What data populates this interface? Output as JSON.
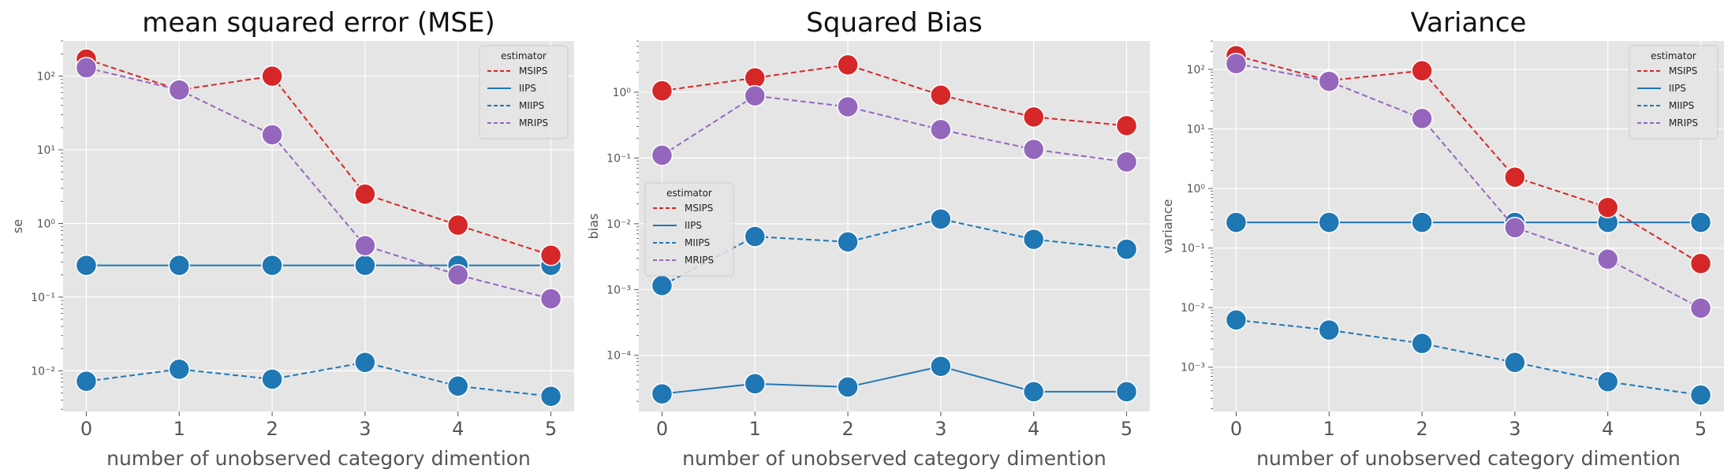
{
  "colors": {
    "MSIPS": "#d62728",
    "IIPS": "#1f77b4",
    "MIIPS": "#1f77b4",
    "MRIPS": "#9467bd",
    "axes_bg": "#e5e5e5",
    "grid": "#ffffff"
  },
  "chart_data": [
    {
      "type": "line",
      "title": "mean squared error (MSE)",
      "xlabel": "number of unobserved category dimention",
      "ylabel": "se",
      "yscale": "log",
      "ylim": [
        0.0028,
        300
      ],
      "yticks": [
        0.01,
        0.1,
        1,
        10,
        100
      ],
      "ytick_labels": [
        "10⁻²",
        "10⁻¹",
        "10⁰",
        "10¹",
        "10²"
      ],
      "x": [
        0,
        1,
        2,
        3,
        4,
        5
      ],
      "xtick_labels": [
        "0",
        "1",
        "2",
        "3",
        "4",
        "5"
      ],
      "grid": true,
      "legend": {
        "title": "estimator",
        "placement": "upper right"
      },
      "series": [
        {
          "name": "MSIPS",
          "values": [
            170,
            65,
            100,
            2.5,
            0.95,
            0.37
          ]
        },
        {
          "name": "IIPS",
          "values": [
            0.27,
            0.27,
            0.27,
            0.27,
            0.27,
            0.27
          ]
        },
        {
          "name": "MIIPS",
          "values": [
            0.0072,
            0.0105,
            0.0077,
            0.013,
            0.0062,
            0.0045
          ]
        },
        {
          "name": "MRIPS",
          "values": [
            130,
            65,
            16,
            0.5,
            0.2,
            0.095
          ]
        }
      ]
    },
    {
      "type": "line",
      "title": "Squared Bias",
      "xlabel": "number of unobserved category dimention",
      "ylabel": "bias",
      "yscale": "log",
      "ylim": [
        1.4e-05,
        6
      ],
      "yticks": [
        0.0001,
        0.001,
        0.01,
        0.1,
        1
      ],
      "ytick_labels": [
        "10⁻⁴",
        "10⁻³",
        "10⁻²",
        "10⁻¹",
        "10⁰"
      ],
      "x": [
        0,
        1,
        2,
        3,
        4,
        5
      ],
      "xtick_labels": [
        "0",
        "1",
        "2",
        "3",
        "4",
        "5"
      ],
      "grid": true,
      "legend": {
        "title": "estimator",
        "placement": "center left"
      },
      "series": [
        {
          "name": "MSIPS",
          "values": [
            1.05,
            1.65,
            2.6,
            0.9,
            0.42,
            0.31
          ]
        },
        {
          "name": "IIPS",
          "values": [
            2.6e-05,
            3.7e-05,
            3.3e-05,
            6.8e-05,
            2.8e-05,
            2.8e-05
          ]
        },
        {
          "name": "MIIPS",
          "values": [
            0.00115,
            0.0064,
            0.0053,
            0.0118,
            0.0058,
            0.0041
          ]
        },
        {
          "name": "MRIPS",
          "values": [
            0.11,
            0.88,
            0.6,
            0.27,
            0.135,
            0.087
          ]
        }
      ]
    },
    {
      "type": "line",
      "title": "Variance",
      "xlabel": "number of unobserved category dimention",
      "ylabel": "variance",
      "yscale": "log",
      "ylim": [
        0.00018,
        300
      ],
      "yticks": [
        0.001,
        0.01,
        0.1,
        1,
        10,
        100
      ],
      "ytick_labels": [
        "10⁻³",
        "10⁻²",
        "10⁻¹",
        "10⁰",
        "10¹",
        "10²"
      ],
      "x": [
        0,
        1,
        2,
        3,
        4,
        5
      ],
      "xtick_labels": [
        "0",
        "1",
        "2",
        "3",
        "4",
        "5"
      ],
      "grid": true,
      "legend": {
        "title": "estimator",
        "placement": "upper right"
      },
      "series": [
        {
          "name": "MSIPS",
          "values": [
            170,
            65,
            95,
            1.55,
            0.48,
            0.055
          ]
        },
        {
          "name": "IIPS",
          "values": [
            0.27,
            0.27,
            0.27,
            0.27,
            0.27,
            0.27
          ]
        },
        {
          "name": "MIIPS",
          "values": [
            0.0062,
            0.0042,
            0.0025,
            0.0012,
            0.00057,
            0.00034
          ]
        },
        {
          "name": "MRIPS",
          "values": [
            125,
            63,
            15,
            0.22,
            0.065,
            0.0098
          ]
        }
      ]
    }
  ]
}
